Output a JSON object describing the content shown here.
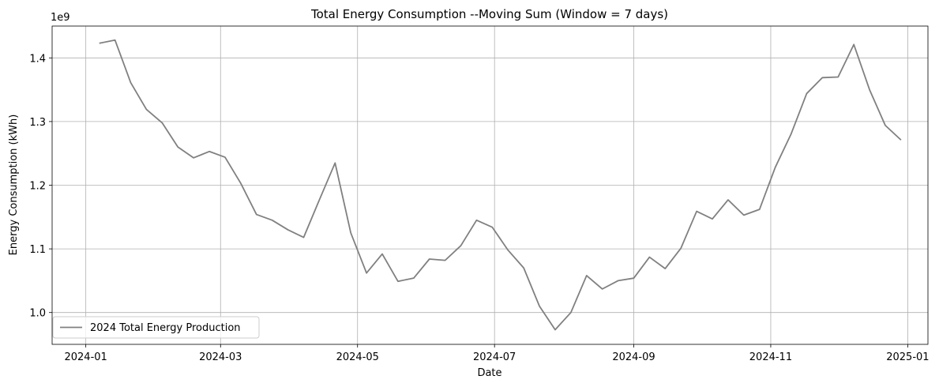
{
  "chart_data": {
    "type": "line",
    "title": "Total Energy Consumption --Moving Sum (Window = 7 days)",
    "xlabel": "Date",
    "ylabel": "Energy Consumption (kWh)",
    "y_offset_label": "1e9",
    "y_scale_factor": 1000000000,
    "grid": true,
    "legend_position": "lower-left",
    "xlim": [
      "2023-12-17",
      "2025-01-10"
    ],
    "ylim": [
      0.95,
      1.45
    ],
    "x_ticks": [
      "2024-01-01",
      "2024-03-01",
      "2024-05-01",
      "2024-07-01",
      "2024-09-01",
      "2024-11-01",
      "2025-01-01"
    ],
    "x_tick_labels": [
      "2024-01",
      "2024-03",
      "2024-05",
      "2024-07",
      "2024-09",
      "2024-11",
      "2025-01"
    ],
    "y_ticks": [
      1.0,
      1.1,
      1.2,
      1.3,
      1.4
    ],
    "y_tick_labels": [
      "1.0",
      "1.1",
      "1.2",
      "1.3",
      "1.4"
    ],
    "series": [
      {
        "name": "2024 Total Energy Production",
        "color": "#808080",
        "x": [
          "2024-01-07",
          "2024-01-14",
          "2024-01-21",
          "2024-01-28",
          "2024-02-04",
          "2024-02-11",
          "2024-02-18",
          "2024-02-25",
          "2024-03-03",
          "2024-03-10",
          "2024-03-17",
          "2024-03-24",
          "2024-03-31",
          "2024-04-07",
          "2024-04-14",
          "2024-04-21",
          "2024-04-28",
          "2024-05-05",
          "2024-05-12",
          "2024-05-19",
          "2024-05-26",
          "2024-06-02",
          "2024-06-09",
          "2024-06-16",
          "2024-06-23",
          "2024-06-30",
          "2024-07-07",
          "2024-07-14",
          "2024-07-21",
          "2024-07-28",
          "2024-08-04",
          "2024-08-11",
          "2024-08-18",
          "2024-08-25",
          "2024-09-01",
          "2024-09-08",
          "2024-09-15",
          "2024-09-22",
          "2024-09-29",
          "2024-10-06",
          "2024-10-13",
          "2024-10-20",
          "2024-10-27",
          "2024-11-03",
          "2024-11-10",
          "2024-11-17",
          "2024-11-24",
          "2024-12-01",
          "2024-12-08",
          "2024-12-15",
          "2024-12-22",
          "2024-12-29"
        ],
        "values": [
          1.423,
          1.428,
          1.361,
          1.319,
          1.298,
          1.26,
          1.243,
          1.253,
          1.244,
          1.203,
          1.154,
          1.145,
          1.13,
          1.118,
          1.177,
          1.235,
          1.125,
          1.062,
          1.092,
          1.049,
          1.054,
          1.084,
          1.082,
          1.105,
          1.145,
          1.134,
          1.098,
          1.07,
          1.01,
          0.973,
          1.0,
          1.058,
          1.037,
          1.05,
          1.054,
          1.087,
          1.069,
          1.101,
          1.159,
          1.147,
          1.177,
          1.153,
          1.162,
          1.228,
          1.28,
          1.344,
          1.369,
          1.37,
          1.421,
          1.35,
          1.294,
          1.271
        ]
      }
    ]
  }
}
